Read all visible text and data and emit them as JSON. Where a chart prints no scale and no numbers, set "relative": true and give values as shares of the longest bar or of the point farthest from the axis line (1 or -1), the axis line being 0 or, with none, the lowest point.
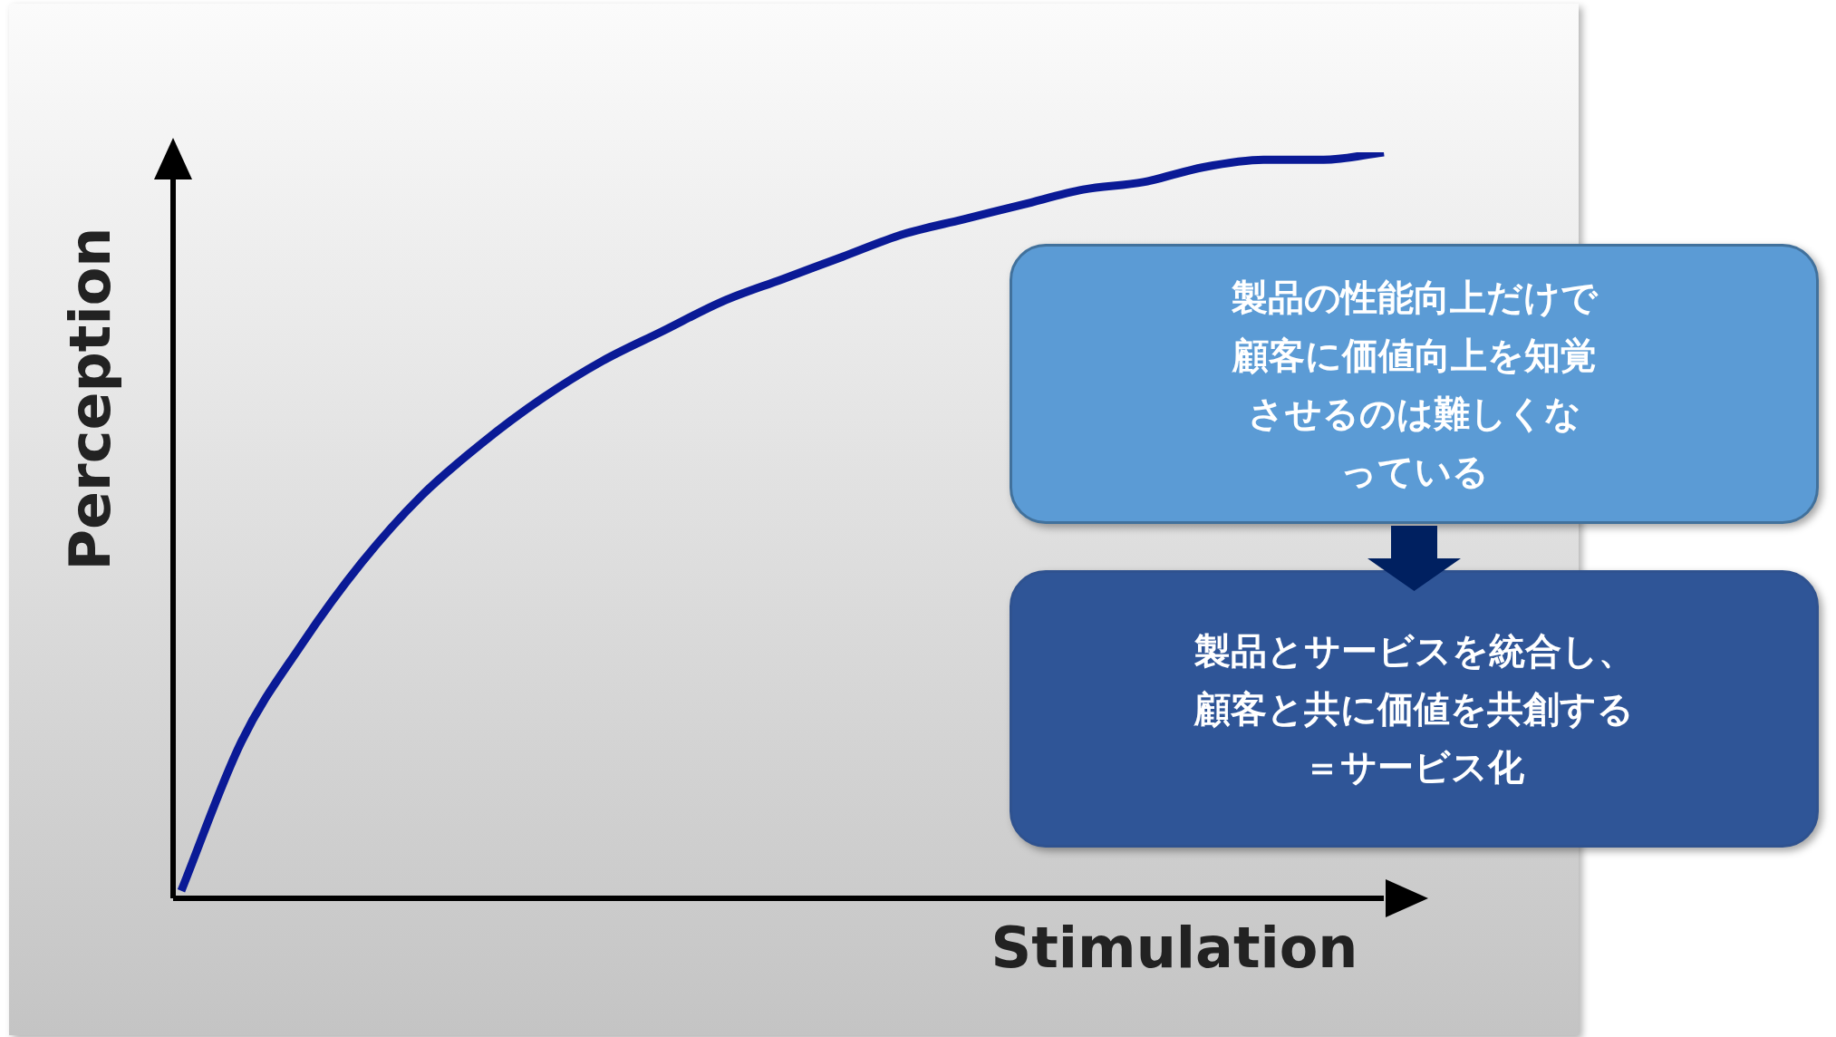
{
  "chart_data": {
    "type": "line",
    "relative": true,
    "xlabel": "Stimulation",
    "ylabel": "Perception",
    "categories": [
      null,
      null,
      null,
      null,
      null,
      null,
      null,
      null,
      null,
      null,
      null,
      null,
      null,
      null,
      null,
      null,
      null,
      null,
      null,
      null,
      null
    ],
    "series": [
      {
        "color": "#0a1a96",
        "values": [
          0.01,
          0.21,
          0.34,
          0.45,
          0.54,
          0.61,
          0.67,
          0.72,
          0.76,
          0.8,
          0.83,
          0.86,
          0.89,
          0.91,
          0.93,
          0.95,
          0.96,
          0.98,
          0.99,
          0.99,
          1
        ]
      }
    ],
    "annotations": [
      "製品の性能向上だけで顧客に価値向上を知覚させるのは難しくなっている",
      "製品とサービスを統合し、顧客と共に価値を共創する＝サービス化"
    ],
    "legend": false,
    "marker": "none"
  }
}
